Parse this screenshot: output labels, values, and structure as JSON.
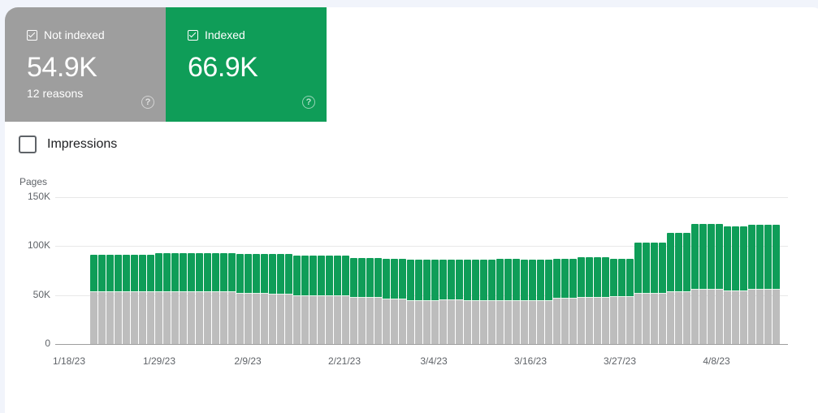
{
  "cards": [
    {
      "label": "Not indexed",
      "checked": true,
      "value": "54.9K",
      "sub": "12 reasons",
      "color": "#9e9e9e",
      "help_icon": "help-circle-icon"
    },
    {
      "label": "Indexed",
      "checked": true,
      "value": "66.9K",
      "sub": "",
      "color": "#0f9d58",
      "help_icon": "help-circle-icon"
    }
  ],
  "impressions": {
    "label": "Impressions",
    "checked": false
  },
  "chart_data": {
    "type": "bar",
    "stacked": true,
    "ylabel": "Pages",
    "xlabel": "",
    "ylim": [
      0,
      150000
    ],
    "yticks": [
      "0",
      "50K",
      "100K",
      "150K"
    ],
    "xticks": [
      "1/18/23",
      "1/29/23",
      "2/9/23",
      "2/21/23",
      "3/4/23",
      "3/16/23",
      "3/27/23",
      "4/8/23"
    ],
    "grid": true,
    "colors": {
      "Not indexed": "#bdbdbd",
      "Indexed": "#0f9d58"
    },
    "x_start": "1/20/23",
    "x_end": "4/14/23",
    "series": [
      {
        "name": "Not indexed",
        "values": [
          53.6,
          53.6,
          53.6,
          53.6,
          53.6,
          53.6,
          53.6,
          53.6,
          53.6,
          53.6,
          53.6,
          53.6,
          53.6,
          53.6,
          53.6,
          53.6,
          53.6,
          53.6,
          52.2,
          52.2,
          52.2,
          52.2,
          51.4,
          51.4,
          51.4,
          49.5,
          49.5,
          49.5,
          49.5,
          49.5,
          49.5,
          49.5,
          48.1,
          48.1,
          48.1,
          48.1,
          46.7,
          46.7,
          46.7,
          44.8,
          44.8,
          44.8,
          44.8,
          45.8,
          45.8,
          45.8,
          44.8,
          44.8,
          44.8,
          44.8,
          44.8,
          44.8,
          44.8,
          44.5,
          44.5,
          44.5,
          44.5,
          47.3,
          47.3,
          47.3,
          48.1,
          48.1,
          48.1,
          48.1,
          48.6,
          48.6,
          48.6,
          52.5,
          52.5,
          52.5,
          52.5,
          53.6,
          53.6,
          53.6,
          56.1,
          56.1,
          56.1,
          56.1,
          54.5,
          54.5,
          54.5,
          56.1,
          56.1,
          56.1,
          56.1
        ]
      },
      {
        "name": "Indexed",
        "values": [
          37.8,
          37.8,
          37.8,
          37.8,
          37.8,
          37.8,
          37.8,
          37.8,
          39.3,
          39.3,
          39.3,
          39.3,
          39.3,
          39.3,
          39.3,
          39.3,
          39.3,
          39.3,
          39.6,
          39.6,
          39.6,
          39.6,
          40.4,
          40.4,
          40.4,
          40.6,
          40.6,
          40.6,
          40.6,
          40.6,
          40.6,
          40.6,
          40.0,
          40.0,
          40.0,
          40.0,
          40.6,
          40.6,
          40.6,
          41.2,
          41.2,
          41.2,
          41.2,
          40.2,
          40.2,
          40.2,
          41.2,
          41.2,
          41.2,
          41.2,
          42.2,
          42.2,
          42.2,
          42.0,
          42.0,
          42.0,
          42.0,
          40.0,
          40.0,
          40.0,
          40.4,
          40.4,
          40.4,
          40.4,
          38.7,
          38.7,
          38.7,
          51.1,
          51.1,
          51.1,
          51.1,
          60.2,
          60.2,
          60.2,
          66.6,
          66.6,
          66.6,
          66.6,
          65.4,
          65.4,
          65.4,
          66.0,
          66.0,
          66.0,
          66.0
        ]
      }
    ],
    "units": "thousands"
  }
}
